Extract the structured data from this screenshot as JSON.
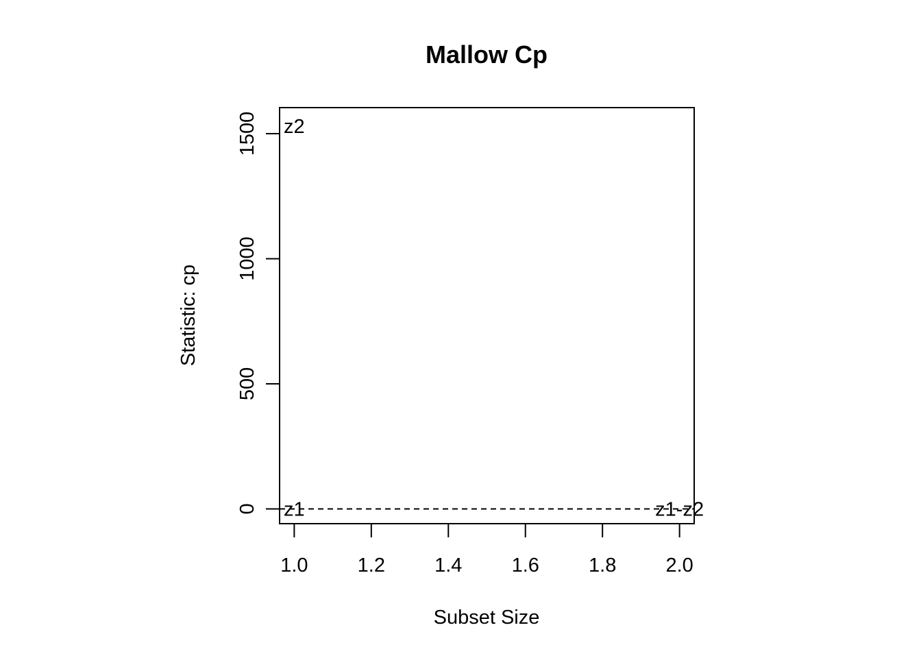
{
  "chart_data": {
    "type": "scatter",
    "title": "Mallow Cp",
    "xlabel": "Subset Size",
    "ylabel": "Statistic: cp",
    "xlim": [
      0.962,
      2.038
    ],
    "ylim": [
      -59,
      1604
    ],
    "xticks": [
      1.0,
      1.2,
      1.4,
      1.6,
      1.8,
      2.0
    ],
    "xtick_labels": [
      "1.0",
      "1.2",
      "1.4",
      "1.6",
      "1.8",
      "2.0"
    ],
    "yticks": [
      0,
      500,
      1000,
      1500
    ],
    "ytick_labels": [
      "0",
      "500",
      "1000",
      "1500"
    ],
    "reference_line": {
      "y": 0,
      "style": "dashed"
    },
    "points": [
      {
        "label": "z2",
        "x": 1,
        "y": 1530
      },
      {
        "label": "z1",
        "x": 1,
        "y": 0
      },
      {
        "label": "z1-z2",
        "x": 2,
        "y": 0
      }
    ],
    "grid": false,
    "legend": "none"
  }
}
